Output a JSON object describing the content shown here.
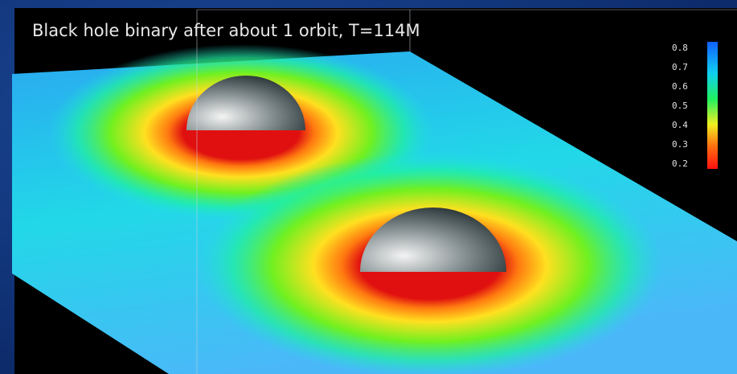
{
  "header": {
    "title": "Black hole binary after about 1 orbit, T=114M"
  },
  "colorbar": {
    "labels": [
      "0.8",
      "0.7",
      "0.6",
      "0.5",
      "0.4",
      "0.3",
      "0.2"
    ]
  }
}
